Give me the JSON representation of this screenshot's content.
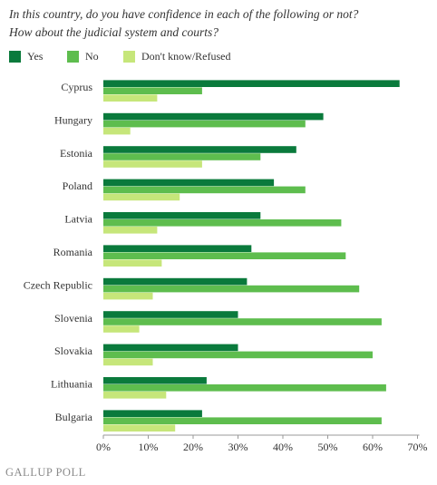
{
  "chart_data": {
    "type": "bar",
    "orientation": "horizontal",
    "title": "In this country, do you have confidence in each of the following or not?",
    "subtitle": "How about the judicial system and courts?",
    "categories": [
      "Cyprus",
      "Hungary",
      "Estonia",
      "Poland",
      "Latvia",
      "Romania",
      "Czech Republic",
      "Slovenia",
      "Slovakia",
      "Lithuania",
      "Bulgaria"
    ],
    "series": [
      {
        "name": "Yes",
        "color": "#0a7a3c",
        "values": [
          66,
          49,
          43,
          38,
          35,
          33,
          32,
          30,
          30,
          23,
          22
        ]
      },
      {
        "name": "No",
        "color": "#5ebd4e",
        "values": [
          22,
          45,
          35,
          45,
          53,
          54,
          57,
          62,
          60,
          63,
          62
        ]
      },
      {
        "name": "Don't know/Refused",
        "color": "#c6e67a",
        "values": [
          12,
          6,
          22,
          17,
          12,
          13,
          11,
          8,
          11,
          14,
          16
        ]
      }
    ],
    "xlim": [
      0,
      70
    ],
    "xticks": [
      "0%",
      "10%",
      "20%",
      "30%",
      "40%",
      "50%",
      "60%",
      "70%"
    ],
    "xlabel": "",
    "ylabel": "",
    "legend_position": "top-left",
    "grid": false
  },
  "branding": "GALLUP POLL"
}
